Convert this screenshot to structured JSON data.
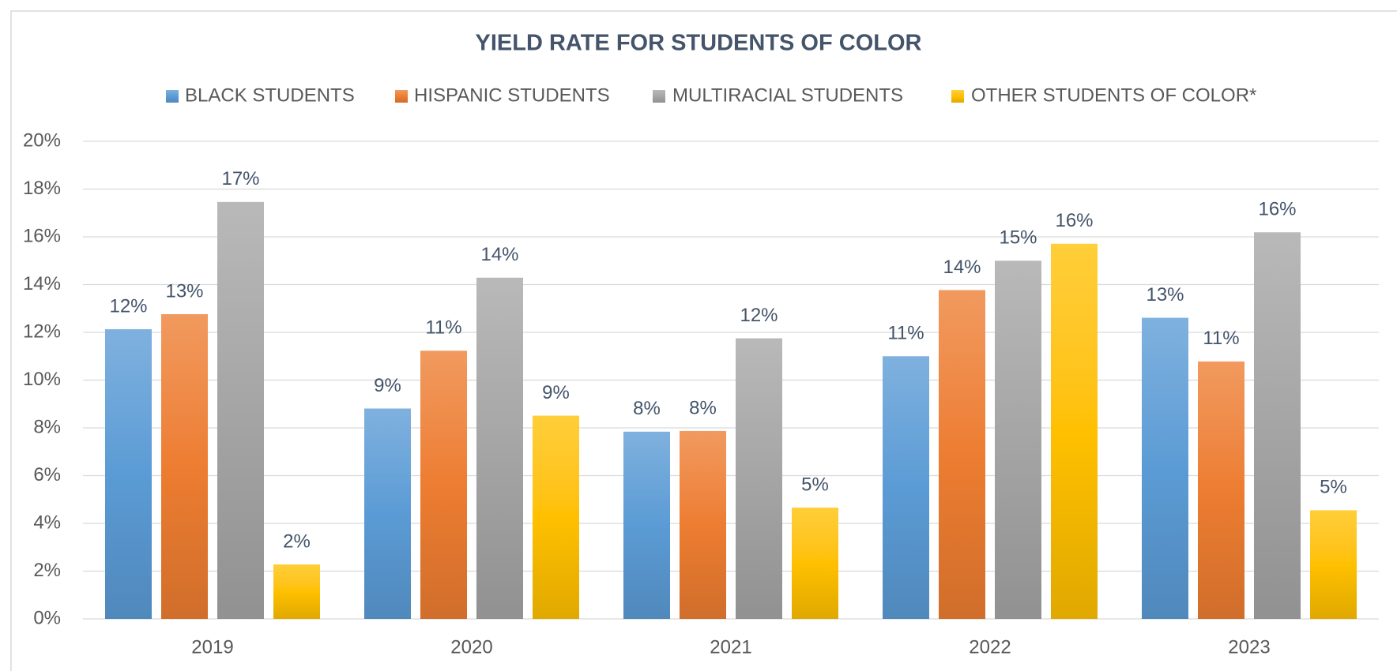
{
  "chart_data": {
    "type": "bar",
    "title": "YIELD RATE FOR STUDENTS OF COLOR",
    "categories": [
      "2019",
      "2020",
      "2021",
      "2022",
      "2023"
    ],
    "series": [
      {
        "name": "BLACK STUDENTS",
        "color": "#5b9bd5",
        "values": [
          12.13,
          8.81,
          7.84,
          11.0,
          12.61
        ],
        "value_labels": [
          "12%",
          "9%",
          "8%",
          "11%",
          "13%"
        ]
      },
      {
        "name": "HISPANIC STUDENTS",
        "color": "#ed7d31",
        "values": [
          12.76,
          11.23,
          7.87,
          13.77,
          10.78
        ],
        "value_labels": [
          "13%",
          "11%",
          "8%",
          "14%",
          "11%"
        ]
      },
      {
        "name": "MULTIRACIAL STUDENTS",
        "color": "#a5a5a5",
        "values": [
          17.46,
          14.29,
          11.75,
          15.0,
          16.19
        ],
        "value_labels": [
          "17%",
          "14%",
          "12%",
          "15%",
          "16%"
        ]
      },
      {
        "name": "OTHER STUDENTS OF COLOR*",
        "color": "#ffc000",
        "values": [
          2.28,
          8.51,
          4.66,
          15.71,
          4.55
        ],
        "value_labels": [
          "2%",
          "9%",
          "5%",
          "16%",
          "5%"
        ]
      }
    ],
    "ylim": [
      0,
      20
    ],
    "yticks": [
      {
        "value": 0,
        "label": "0%"
      },
      {
        "value": 2,
        "label": "2%"
      },
      {
        "value": 4,
        "label": "4%"
      },
      {
        "value": 6,
        "label": "6%"
      },
      {
        "value": 8,
        "label": "8%"
      },
      {
        "value": 10,
        "label": "10%"
      },
      {
        "value": 12,
        "label": "12%"
      },
      {
        "value": 14,
        "label": "14%"
      },
      {
        "value": 16,
        "label": "16%"
      },
      {
        "value": 18,
        "label": "18%"
      },
      {
        "value": 20,
        "label": "20%"
      }
    ],
    "grid": true,
    "legend": "top"
  }
}
